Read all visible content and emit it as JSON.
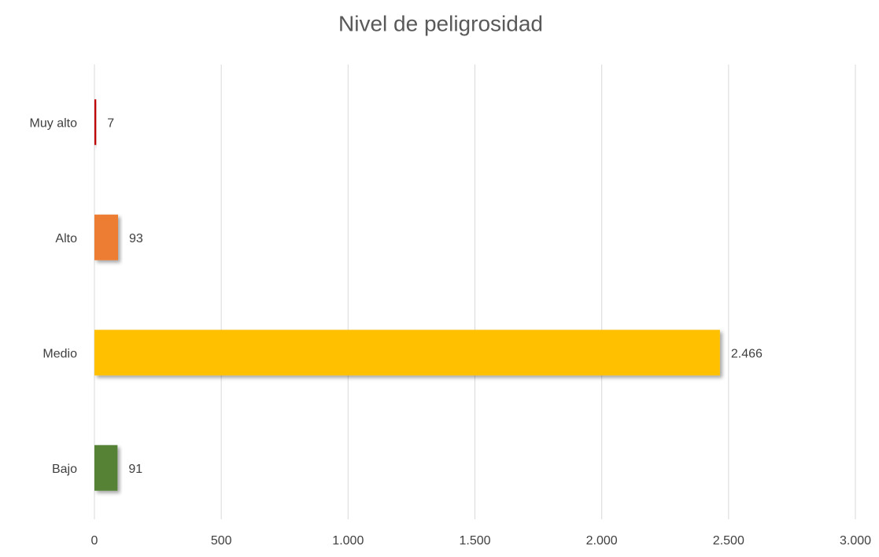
{
  "chart_data": {
    "type": "bar",
    "orientation": "horizontal",
    "title": "Nivel de peligrosidad",
    "categories": [
      "Muy alto",
      "Alto",
      "Medio",
      "Bajo"
    ],
    "values": [
      7,
      93,
      2466,
      91
    ],
    "value_labels": [
      "7",
      "93",
      "2.466",
      "91"
    ],
    "colors": [
      "#c00000",
      "#ed7d31",
      "#ffc000",
      "#548235"
    ],
    "xlim": [
      0,
      3000
    ],
    "xticks": [
      0,
      500,
      {
        "value": 1000,
        "label": "1.000"
      },
      {
        "value": 1500,
        "label": "1.500"
      },
      {
        "value": 2000,
        "label": "2.000"
      },
      {
        "value": 2500,
        "label": "2.500"
      },
      {
        "value": 3000,
        "label": "3.000"
      }
    ],
    "grid": true
  }
}
